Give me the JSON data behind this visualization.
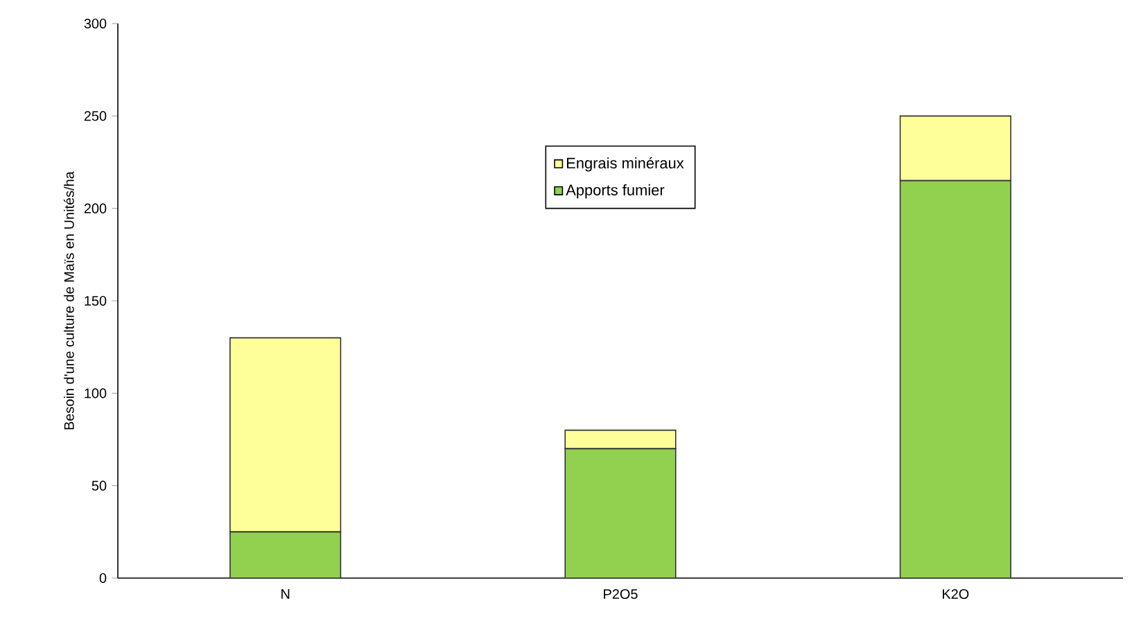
{
  "chart_data": {
    "type": "bar",
    "stacked": true,
    "ylabel": "Besoin d'une culture de Maïs en Unités/ha",
    "categories": [
      "N",
      "P2O5",
      "K2O"
    ],
    "series": [
      {
        "name": "Apports fumier",
        "color": "#92d050",
        "values": [
          25,
          70,
          215
        ]
      },
      {
        "name": "Engrais minéraux",
        "color": "#ffff99",
        "values": [
          105,
          10,
          35
        ]
      }
    ],
    "ylim": [
      0,
      300
    ],
    "yticks": [
      0,
      50,
      100,
      150,
      200,
      250,
      300
    ],
    "grid": false,
    "legend": "top"
  }
}
